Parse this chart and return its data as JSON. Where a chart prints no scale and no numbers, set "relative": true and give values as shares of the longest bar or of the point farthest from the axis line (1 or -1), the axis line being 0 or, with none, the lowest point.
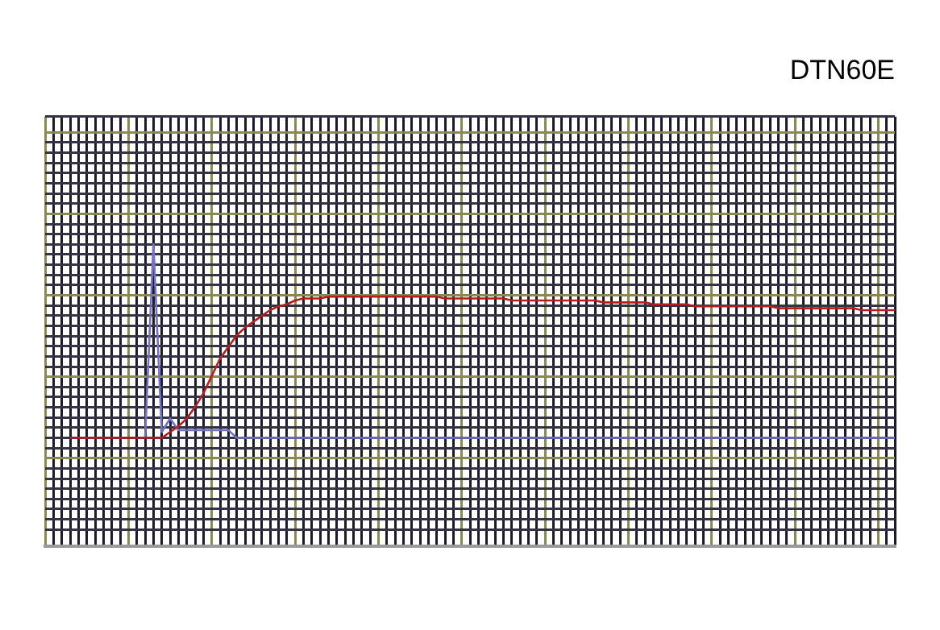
{
  "chart_data": {
    "type": "line",
    "title": "DTN60E",
    "relative": true,
    "grid": true,
    "legend": false,
    "marker": "none",
    "categories": [
      null,
      null,
      null,
      null,
      null,
      null,
      null,
      null,
      null,
      null,
      null,
      null,
      null,
      null,
      null,
      null,
      null,
      null,
      null,
      null,
      null,
      null,
      null,
      null,
      null,
      null,
      null,
      null,
      null,
      null,
      null,
      null,
      null,
      null,
      null,
      null,
      null,
      null,
      null,
      null,
      null,
      null,
      null,
      null,
      null,
      null,
      null,
      null,
      null,
      null,
      null,
      null,
      null,
      null,
      null,
      null,
      null,
      null,
      null,
      null,
      null,
      null,
      null,
      null,
      null,
      null,
      null,
      null,
      null,
      null,
      null,
      null,
      null,
      null,
      null,
      null,
      null,
      null,
      null,
      null,
      null,
      null,
      null,
      null,
      null,
      null,
      null,
      null,
      null,
      null,
      null,
      null,
      null,
      null,
      null,
      null,
      null,
      null,
      null,
      null,
      null,
      null,
      null
    ],
    "series": [
      {
        "color": "#b81c1c",
        "values": [
          null,
          null,
          null,
          0,
          0,
          0,
          0,
          0,
          0,
          0,
          0,
          0,
          0,
          0,
          0,
          0.03,
          0.06,
          0.1,
          0.16,
          0.23,
          0.32,
          0.41,
          0.47,
          0.53,
          0.57,
          0.6,
          0.63,
          0.66,
          0.68,
          0.69,
          0.71,
          0.72,
          0.72,
          0.72,
          0.73,
          0.73,
          0.73,
          0.73,
          0.73,
          0.73,
          0.73,
          0.73,
          0.73,
          0.73,
          0.73,
          0.73,
          0.73,
          0.73,
          0.72,
          0.72,
          0.72,
          0.72,
          0.72,
          0.72,
          0.72,
          0.72,
          0.71,
          0.71,
          0.71,
          0.71,
          0.71,
          0.71,
          0.71,
          0.71,
          0.71,
          0.71,
          0.71,
          0.7,
          0.7,
          0.7,
          0.7,
          0.7,
          0.7,
          0.69,
          0.69,
          0.69,
          0.69,
          0.69,
          0.68,
          0.68,
          0.68,
          0.68,
          0.68,
          0.68,
          0.68,
          0.68,
          0.68,
          0.68,
          0.67,
          0.67,
          0.67,
          0.67,
          0.67,
          0.67,
          0.67,
          0.67,
          0.67,
          0.67,
          0.66,
          0.66,
          0.66,
          0.66,
          0.66
        ]
      },
      {
        "color": "#7272c4",
        "values": [
          null,
          null,
          null,
          null,
          null,
          null,
          null,
          null,
          null,
          null,
          null,
          null,
          0,
          1,
          0.03,
          0.1,
          0.04,
          0.04,
          0.04,
          0.04,
          0.04,
          0.04,
          0.04,
          0,
          0,
          0,
          0,
          0,
          0,
          0,
          0,
          0,
          0,
          0,
          0,
          0,
          0,
          0,
          0,
          0,
          0,
          0,
          0,
          0,
          0,
          0,
          0,
          0,
          0,
          0,
          0,
          0,
          0,
          0,
          0,
          0,
          0,
          0,
          0,
          0,
          0,
          0,
          0,
          0,
          0,
          0,
          0,
          0,
          0,
          0,
          0,
          0,
          0,
          0,
          0,
          0,
          0,
          0,
          0,
          0,
          0,
          0,
          0,
          0,
          0,
          0,
          0,
          0,
          0,
          0,
          0,
          0,
          0,
          0,
          0,
          0,
          0,
          0,
          0,
          0,
          0,
          0,
          0
        ]
      }
    ]
  }
}
